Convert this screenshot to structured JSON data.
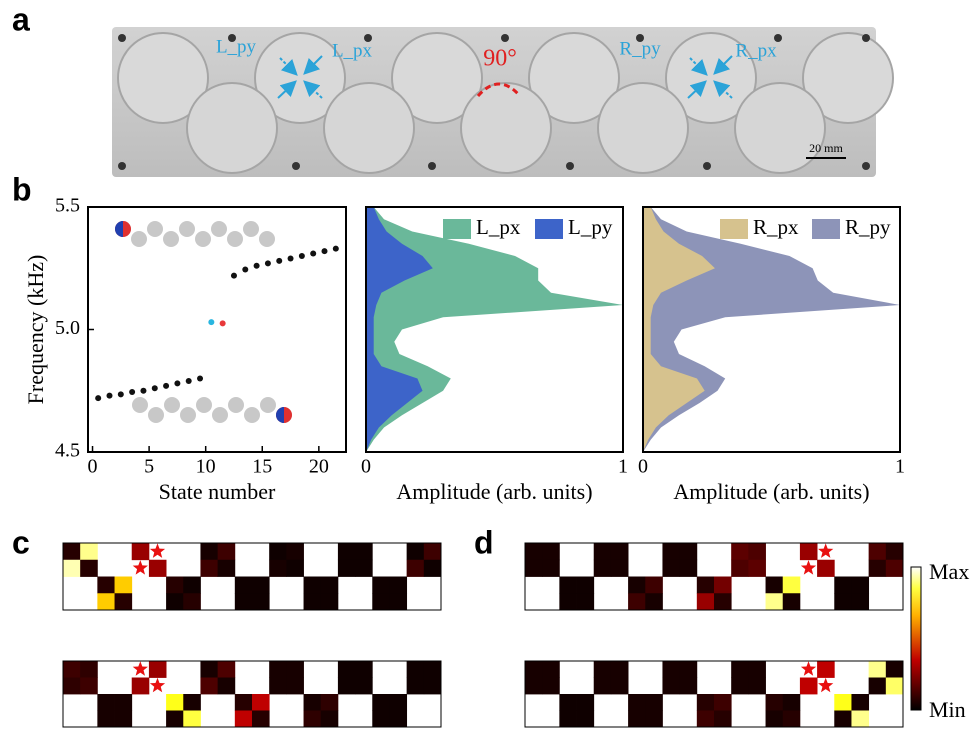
{
  "panel_labels": [
    "a",
    "b",
    "c",
    "d"
  ],
  "photo": {
    "labels": [
      "L_py",
      "L_px",
      "90°",
      "R_py",
      "R_px"
    ],
    "scale_bar": "20 mm"
  },
  "colorbar": {
    "max_label": "Max",
    "min_label": "Min"
  },
  "chart_data": [
    {
      "type": "scatter",
      "xlabel": "State number",
      "ylabel": "Frequency (kHz)",
      "x": [
        0.5,
        1.5,
        2.5,
        3.5,
        4.5,
        5.5,
        6.5,
        7.5,
        8.5,
        9.5,
        10.5,
        11.5,
        12.5,
        13.5,
        14.5,
        15.5,
        16.5,
        17.5,
        18.5,
        19.5,
        20.5,
        21.5
      ],
      "values": [
        4.72,
        4.73,
        4.735,
        4.745,
        4.75,
        4.76,
        4.77,
        4.78,
        4.79,
        4.8,
        5.03,
        5.025,
        5.22,
        5.245,
        5.26,
        5.27,
        5.28,
        5.29,
        5.3,
        5.31,
        5.32,
        5.33
      ],
      "colors": [
        "#111111",
        "#111111",
        "#111111",
        "#111111",
        "#111111",
        "#111111",
        "#111111",
        "#111111",
        "#111111",
        "#111111",
        "#29b6e0",
        "#e8383a",
        "#111111",
        "#111111",
        "#111111",
        "#111111",
        "#111111",
        "#111111",
        "#111111",
        "#111111",
        "#111111",
        "#111111"
      ],
      "xlim": [
        -0.4,
        22.4
      ],
      "ylim": [
        4.5,
        5.5
      ],
      "xticks": [
        0,
        5,
        10,
        15,
        20
      ],
      "yticks": [
        4.5,
        {
          "value": 5,
          "label": "5.0"
        },
        5.5
      ]
    },
    {
      "type": "area",
      "xlabel": "Amplitude (arb. units)",
      "legend": "upper right",
      "y": [
        4.5,
        4.55,
        4.6,
        4.65,
        4.7,
        4.75,
        4.8,
        4.85,
        4.9,
        4.95,
        5,
        5.05,
        5.1,
        5.15,
        5.2,
        5.25,
        5.3,
        5.35,
        5.4,
        5.45,
        5.5
      ],
      "series": [
        {
          "name": "L_px",
          "color": "#6ab89a",
          "values": [
            0,
            0.03,
            0.07,
            0.14,
            0.22,
            0.3,
            0.33,
            0.24,
            0.13,
            0.11,
            0.14,
            0.3,
            1,
            0.72,
            0.67,
            0.67,
            0.58,
            0.4,
            0.18,
            0.07,
            0.03
          ]
        },
        {
          "name": "L_py",
          "color": "#3d64c9",
          "values": [
            0,
            0.02,
            0.05,
            0.1,
            0.16,
            0.22,
            0.2,
            0.06,
            0.03,
            0.03,
            0.03,
            0.03,
            0.04,
            0.06,
            0.15,
            0.26,
            0.22,
            0.14,
            0.08,
            0.05,
            0.03
          ]
        }
      ],
      "xlim": [
        0,
        1
      ],
      "ylim": [
        4.5,
        5.5
      ],
      "xticks": [
        0,
        1
      ]
    },
    {
      "type": "area",
      "xlabel": "Amplitude (arb. units)",
      "legend": "upper right",
      "y": [
        4.5,
        4.55,
        4.6,
        4.65,
        4.7,
        4.75,
        4.8,
        4.85,
        4.9,
        4.95,
        5,
        5.05,
        5.1,
        5.15,
        5.2,
        5.25,
        5.3,
        5.35,
        5.4,
        5.45,
        5.5
      ],
      "series": [
        {
          "name": "R_px",
          "color": "#d6c28e",
          "values": [
            0,
            0.02,
            0.05,
            0.1,
            0.17,
            0.24,
            0.21,
            0.07,
            0.03,
            0.03,
            0.03,
            0.03,
            0.04,
            0.07,
            0.17,
            0.28,
            0.23,
            0.14,
            0.08,
            0.05,
            0.03
          ]
        },
        {
          "name": "R_py",
          "color": "#8d94b8",
          "values": [
            0,
            0.03,
            0.07,
            0.14,
            0.22,
            0.29,
            0.32,
            0.24,
            0.14,
            0.12,
            0.15,
            0.32,
            1,
            0.74,
            0.68,
            0.66,
            0.57,
            0.38,
            0.17,
            0.07,
            0.03
          ]
        }
      ],
      "xlim": [
        0,
        1
      ],
      "ylim": [
        4.5,
        5.5
      ],
      "xticks": [
        0,
        1
      ]
    },
    {
      "type": "heatmap",
      "colormap": "hot",
      "stars": [
        [
          0,
          5
        ],
        [
          1,
          4
        ]
      ],
      "values": [
        [
          0.05,
          0.85,
          null,
          null,
          0.2,
          null,
          null,
          null,
          0.03,
          0.08,
          null,
          null,
          0.02,
          0.03,
          null,
          null,
          0.02,
          0.02,
          null,
          null,
          0.02,
          0.08
        ],
        [
          0.9,
          0.05,
          null,
          null,
          null,
          0.2,
          null,
          null,
          0.08,
          0.03,
          null,
          null,
          0.03,
          0.02,
          null,
          null,
          0.02,
          0.02,
          null,
          null,
          0.08,
          0.02
        ],
        [
          null,
          null,
          0.05,
          0.6,
          null,
          null,
          0.05,
          0.02,
          null,
          null,
          0.02,
          0.02,
          null,
          null,
          0.02,
          0.02,
          null,
          null,
          0.02,
          0.02,
          null,
          null
        ],
        [
          null,
          null,
          0.6,
          0.05,
          null,
          null,
          0.02,
          0.05,
          null,
          null,
          0.02,
          0.02,
          null,
          null,
          0.02,
          0.02,
          null,
          null,
          0.02,
          0.02,
          null,
          null
        ]
      ]
    },
    {
      "type": "heatmap",
      "colormap": "hot",
      "stars": [
        [
          0,
          4
        ],
        [
          1,
          5
        ]
      ],
      "values": [
        [
          0.08,
          0.06,
          null,
          null,
          null,
          0.2,
          null,
          null,
          0.03,
          0.1,
          null,
          null,
          0.03,
          0.03,
          null,
          null,
          0.02,
          0.02,
          null,
          null,
          0.02,
          0.02
        ],
        [
          0.06,
          0.08,
          null,
          null,
          0.2,
          null,
          null,
          null,
          0.1,
          0.03,
          null,
          null,
          0.03,
          0.03,
          null,
          null,
          0.02,
          0.02,
          null,
          null,
          0.02,
          0.02
        ],
        [
          null,
          null,
          0.03,
          0.03,
          null,
          null,
          0.7,
          0.03,
          null,
          null,
          0.05,
          0.25,
          null,
          null,
          0.03,
          0.06,
          null,
          null,
          0.02,
          0.02,
          null,
          null
        ],
        [
          null,
          null,
          0.03,
          0.03,
          null,
          null,
          0.03,
          0.75,
          null,
          null,
          0.25,
          0.05,
          null,
          null,
          0.06,
          0.03,
          null,
          null,
          0.02,
          0.02,
          null,
          null
        ]
      ]
    },
    {
      "type": "heatmap",
      "colormap": "hot",
      "stars": [
        [
          0,
          17
        ],
        [
          1,
          16
        ]
      ],
      "values": [
        [
          0.03,
          0.03,
          null,
          null,
          0.03,
          0.03,
          null,
          null,
          0.03,
          0.03,
          null,
          null,
          0.12,
          0.1,
          null,
          null,
          0.2,
          null,
          null,
          null,
          0.1,
          0.05
        ],
        [
          0.03,
          0.03,
          null,
          null,
          0.03,
          0.03,
          null,
          null,
          0.03,
          0.03,
          null,
          null,
          0.1,
          0.12,
          null,
          null,
          null,
          0.2,
          null,
          null,
          0.05,
          0.1
        ],
        [
          null,
          null,
          0.02,
          0.02,
          null,
          null,
          0.03,
          0.08,
          null,
          null,
          0.05,
          0.15,
          null,
          null,
          0.03,
          0.75,
          null,
          null,
          0.02,
          0.02,
          null,
          null
        ],
        [
          null,
          null,
          0.02,
          0.02,
          null,
          null,
          0.08,
          0.03,
          null,
          null,
          0.2,
          0.05,
          null,
          null,
          0.85,
          0.03,
          null,
          null,
          0.02,
          0.02,
          null,
          null
        ]
      ]
    },
    {
      "type": "heatmap",
      "colormap": "hot",
      "stars": [
        [
          0,
          16
        ],
        [
          1,
          17
        ]
      ],
      "values": [
        [
          0.03,
          0.03,
          null,
          null,
          0.03,
          0.03,
          null,
          null,
          0.03,
          0.03,
          null,
          null,
          0.03,
          0.03,
          null,
          null,
          null,
          0.25,
          null,
          null,
          0.85,
          0.03
        ],
        [
          0.03,
          0.03,
          null,
          null,
          0.03,
          0.03,
          null,
          null,
          0.03,
          0.03,
          null,
          null,
          0.03,
          0.03,
          null,
          null,
          0.25,
          null,
          null,
          null,
          0.03,
          0.8
        ],
        [
          null,
          null,
          0.02,
          0.02,
          null,
          null,
          0.03,
          0.03,
          null,
          null,
          0.05,
          0.08,
          null,
          null,
          0.05,
          0.03,
          null,
          null,
          0.7,
          0.03,
          null,
          null
        ],
        [
          null,
          null,
          0.02,
          0.02,
          null,
          null,
          0.03,
          0.03,
          null,
          null,
          0.08,
          0.05,
          null,
          null,
          0.03,
          0.05,
          null,
          null,
          0.03,
          0.85,
          null,
          null
        ]
      ]
    }
  ]
}
